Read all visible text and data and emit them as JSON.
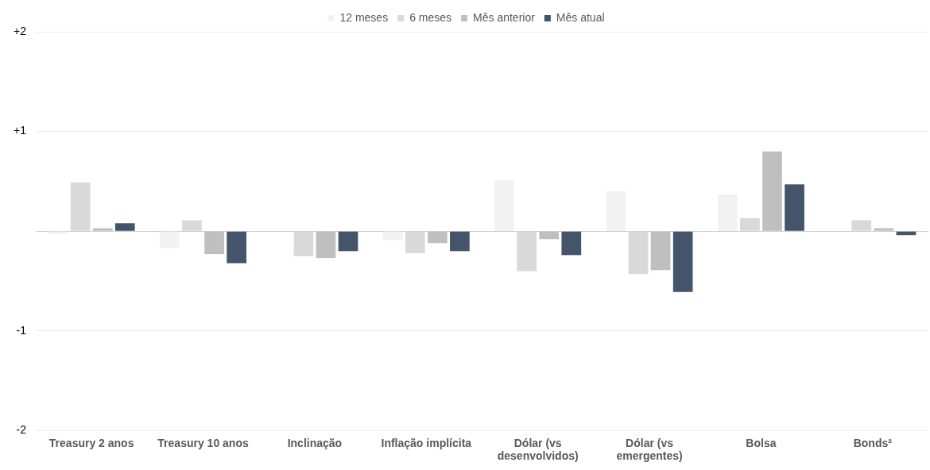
{
  "chart_data": {
    "type": "bar",
    "categories": [
      "Treasury 2 anos",
      "Treasury 10 anos",
      "Inclinação",
      "Inflação implícita",
      "Dólar (vs desenvolvidos)",
      "Dólar (vs emergentes)",
      "Bolsa",
      "Bonds²"
    ],
    "series": [
      {
        "name": "12 meses",
        "color": "#f2f2f2",
        "values": [
          -0.03,
          -0.17,
          null,
          -0.09,
          0.51,
          0.4,
          0.37,
          null
        ]
      },
      {
        "name": "6 meses",
        "color": "#d9d9d9",
        "values": [
          0.49,
          0.11,
          -0.25,
          -0.22,
          -0.4,
          -0.43,
          0.13,
          0.11
        ]
      },
      {
        "name": "Mês anterior",
        "color": "#bfbfbf",
        "values": [
          0.03,
          -0.23,
          -0.27,
          -0.12,
          -0.08,
          -0.39,
          0.8,
          0.03
        ]
      },
      {
        "name": "Mês atual",
        "color": "#44546a",
        "values": [
          0.08,
          -0.32,
          -0.2,
          -0.2,
          -0.24,
          -0.61,
          0.47,
          -0.04
        ]
      }
    ],
    "ylim": [
      -2,
      2
    ],
    "yticks": [
      {
        "value": 2,
        "label": "+2"
      },
      {
        "value": 1,
        "label": "+1"
      },
      {
        "value": 0,
        "label": null
      },
      -1,
      -2
    ],
    "grid": "y",
    "legend": "top"
  }
}
